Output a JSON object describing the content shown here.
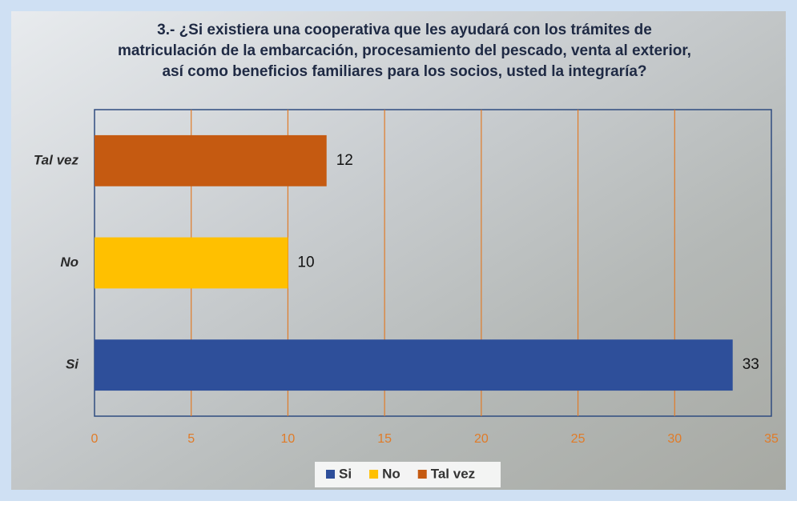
{
  "chart_data": {
    "type": "hbar",
    "title_lines": [
      "3.- ¿Si existiera una cooperativa que les ayudará con los trámites de",
      "matriculación de la embarcación, procesamiento del pescado, venta al exterior,",
      "así como beneficios familiares para los socios, usted la integraría?"
    ],
    "categories": [
      "Si",
      "No",
      "Tal vez"
    ],
    "values": [
      33,
      10,
      12
    ],
    "colors": [
      "#2e4f9a",
      "#ffc000",
      "#c55a11"
    ],
    "xlim": [
      0,
      35
    ],
    "xticks": [
      0,
      5,
      10,
      15,
      20,
      25,
      30,
      35
    ],
    "grid": true,
    "legend": "bottom"
  }
}
